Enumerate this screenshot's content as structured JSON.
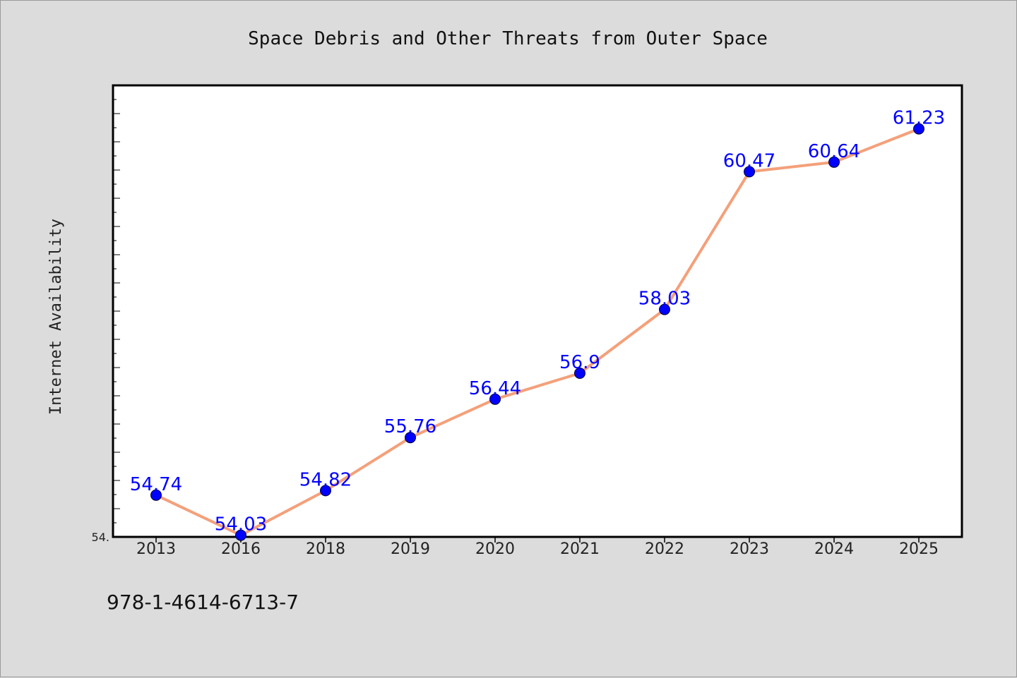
{
  "chart_data": {
    "type": "line",
    "title": "Space Debris and Other Threats from Outer Space",
    "xlabel": "",
    "ylabel": "Internet Availability",
    "categories": [
      "2013",
      "2016",
      "2018",
      "2019",
      "2020",
      "2021",
      "2022",
      "2023",
      "2024",
      "2025"
    ],
    "values": [
      54.74,
      54.03,
      54.82,
      55.76,
      56.44,
      56.9,
      58.03,
      60.47,
      60.64,
      61.23
    ],
    "data_labels": [
      "54.74",
      "54.03",
      "54.82",
      "55.76",
      "56.44",
      "56.9",
      "58.03",
      "60.47",
      "60.64",
      "61.23"
    ],
    "y_min_label": "54.",
    "ylim": [
      54.0,
      62.0
    ],
    "grid": false,
    "legend": "none",
    "line_color": "#f4a07a",
    "marker_color": "#0000ff",
    "label_color": "#0000ff"
  },
  "footer": {
    "isbn": "978-1-4614-6713-7"
  }
}
